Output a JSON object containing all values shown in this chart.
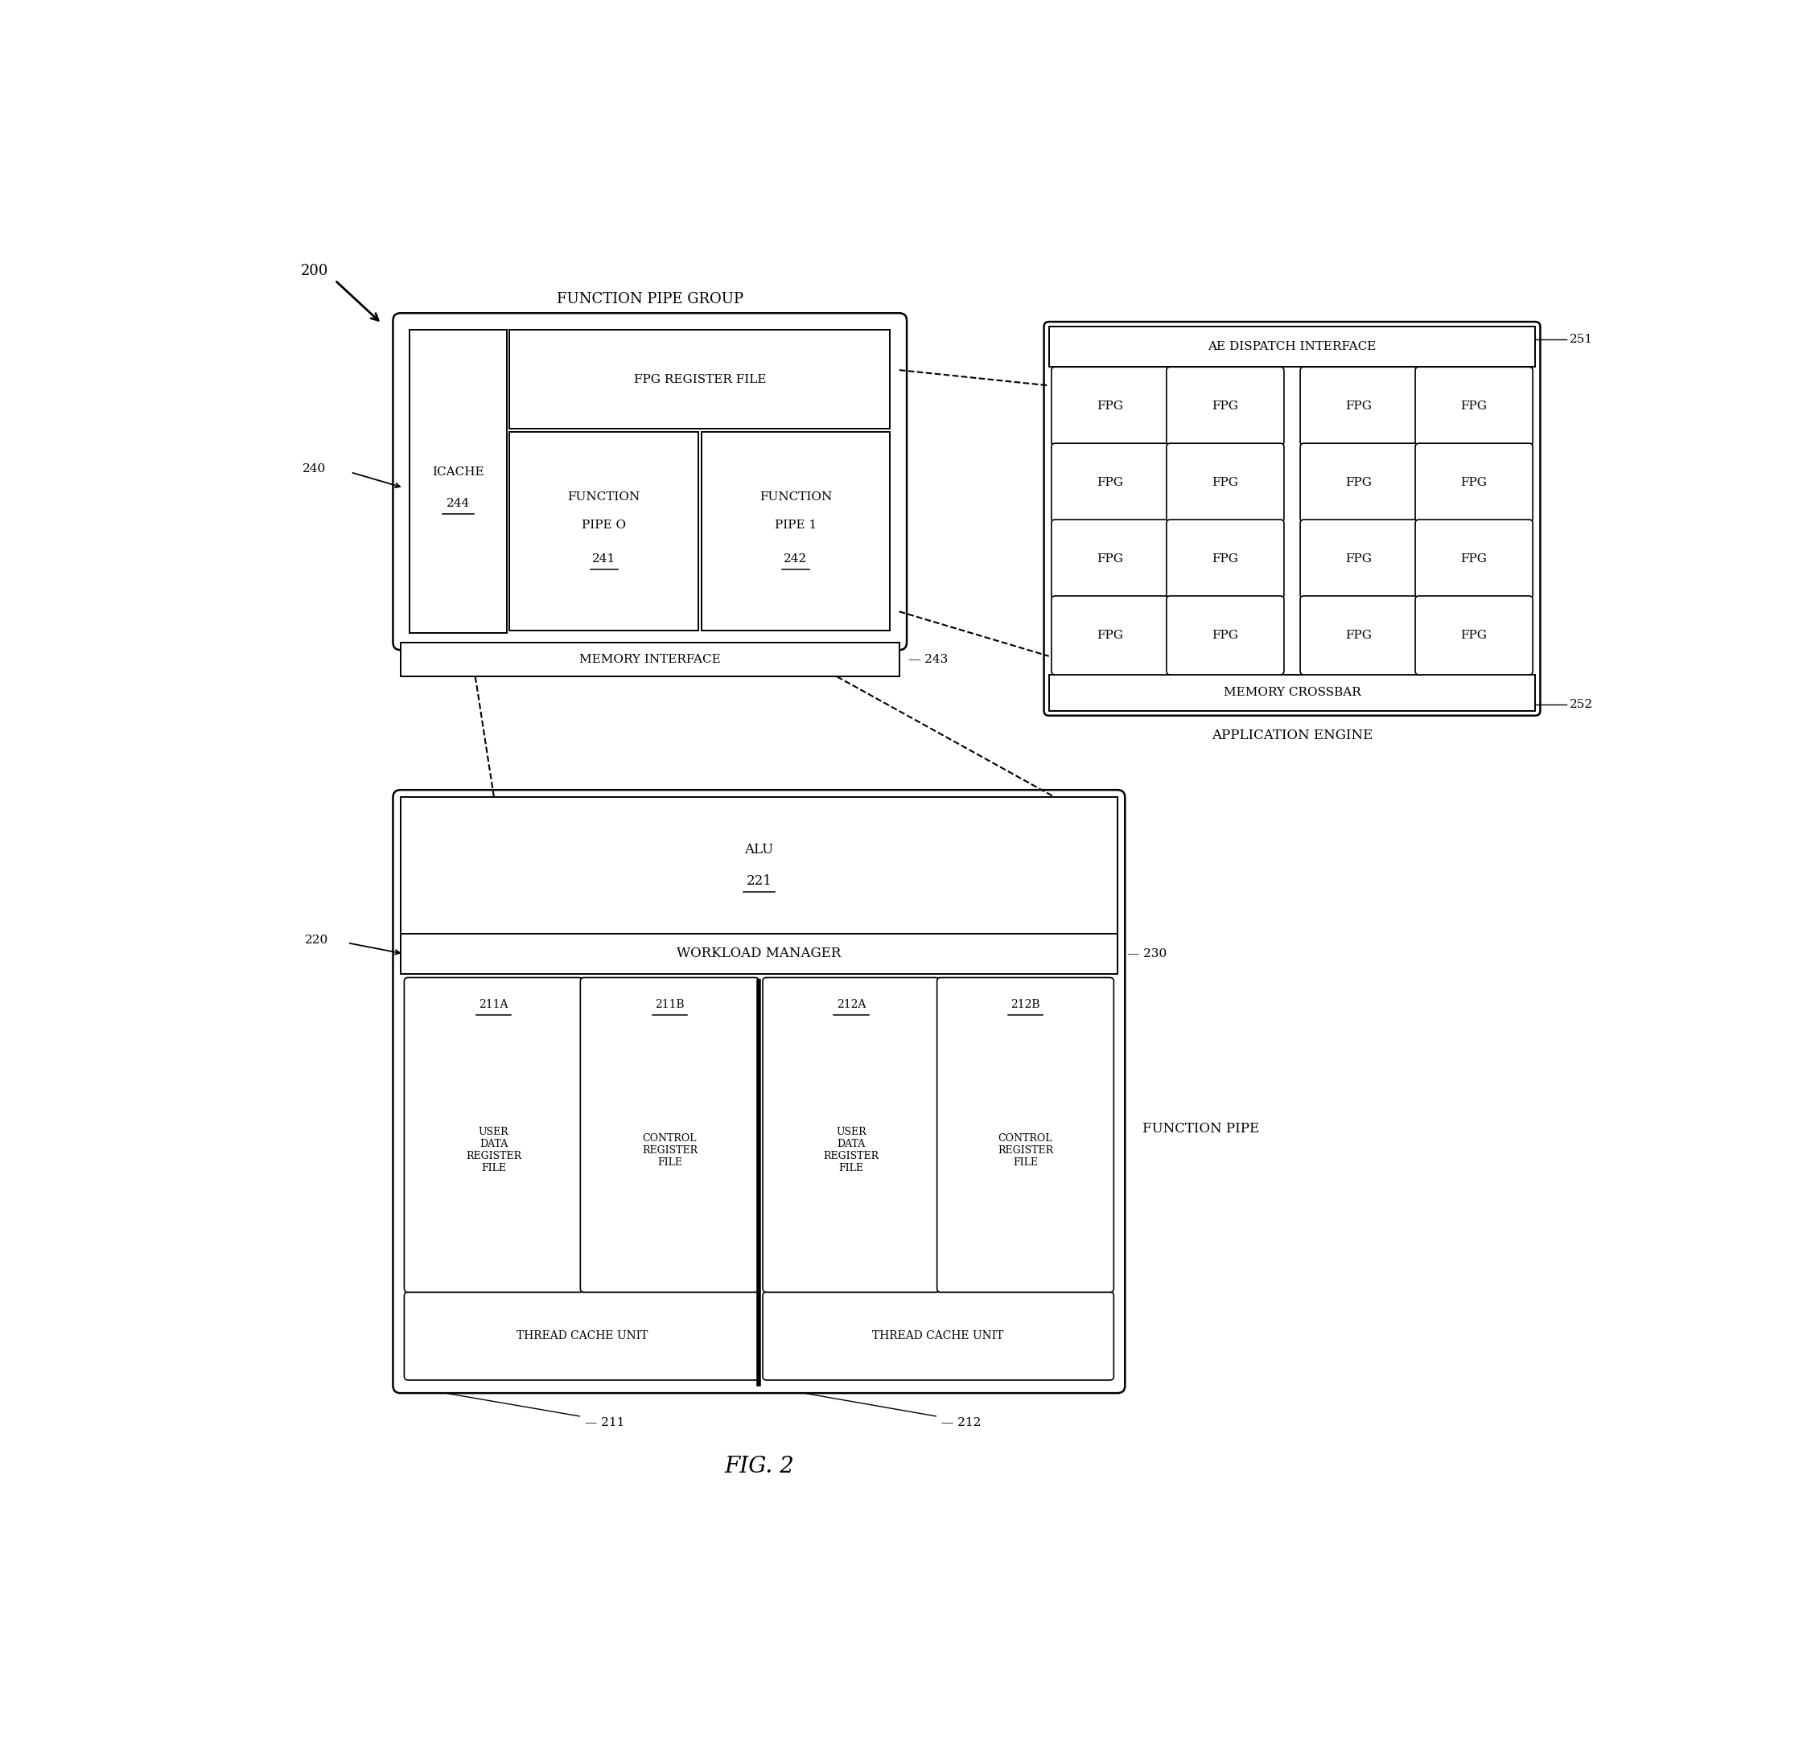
{
  "bg_color": "#ffffff",
  "fig_width": 22.46,
  "fig_height": 21.66,
  "title": "FIG. 2",
  "label_200": "200",
  "label_240": "240",
  "label_220": "220",
  "label_230": "230",
  "label_243": "243",
  "label_251": "251",
  "label_252": "252",
  "label_211": "211",
  "label_212": "212",
  "fpg_group_label": "FUNCTION PIPE GROUP",
  "fpg_reg_file_label": "FPG REGISTER FILE",
  "icache_label": "ICACHE",
  "icache_ref": "244",
  "func_pipe0_line1": "FUNCTION",
  "func_pipe0_line2": "PIPE O",
  "func_pipe0_ref": "241",
  "func_pipe1_line1": "FUNCTION",
  "func_pipe1_line2": "PIPE 1",
  "func_pipe1_ref": "242",
  "mem_interface_label": "MEMORY INTERFACE",
  "ae_dispatch_label": "AE DISPATCH INTERFACE",
  "memory_crossbar_label": "MEMORY CROSSBAR",
  "app_engine_label": "APPLICATION ENGINE",
  "alu_line1": "ALU",
  "alu_ref": "221",
  "workload_manager_label": "WORKLOAD MANAGER",
  "func_pipe_label": "FUNCTION PIPE",
  "reg_labels": [
    "211A",
    "211B",
    "212A",
    "212B"
  ],
  "reg_bodies": [
    "USER\nDATA\nREGISTER\nFILE",
    "CONTROL\nREGISTER\nFILE",
    "USER\nDATA\nREGISTER\nFILE",
    "CONTROL\nREGISTER\nFILE"
  ],
  "thread_cache_label": "THREAD CACHE UNIT"
}
